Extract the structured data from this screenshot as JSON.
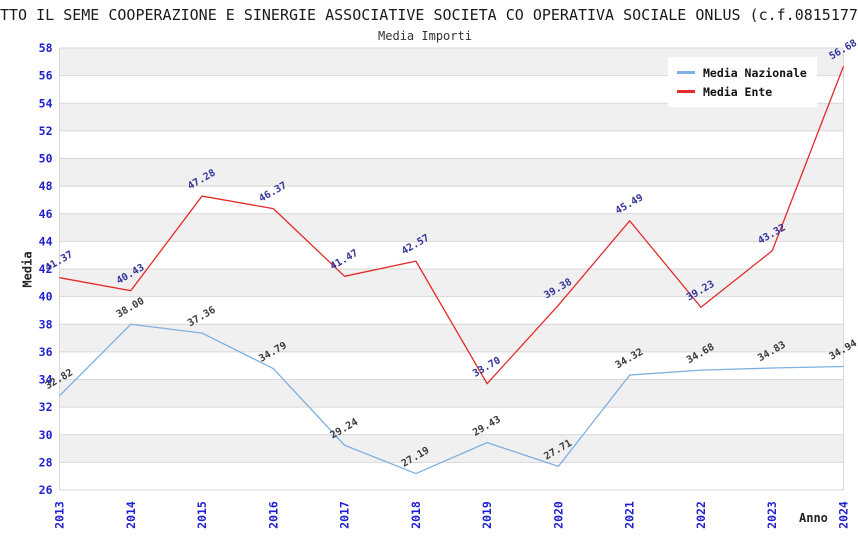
{
  "title": "TTO IL SEME COOPERAZIONE E SINERGIE ASSOCIATIVE SOCIETA CO OPERATIVA SOCIALE ONLUS (c.f.0815177",
  "subtitle": "Media Importi",
  "legend": {
    "items": [
      {
        "label": "Media Nazionale",
        "color": "#7EB0E2"
      },
      {
        "label": "Media Ente",
        "color": "#E42B2B"
      }
    ]
  },
  "chart_data": {
    "type": "line",
    "title": "Media Importi",
    "xlabel": "Anno",
    "ylabel": "Media",
    "x": [
      2013,
      2014,
      2015,
      2016,
      2017,
      2018,
      2019,
      2020,
      2021,
      2022,
      2023,
      2024
    ],
    "series": [
      {
        "name": "Media Nazionale",
        "color": "#7EB0E2",
        "label_color": "#3a3a3a",
        "values": [
          32.82,
          38.0,
          37.36,
          34.79,
          29.24,
          27.19,
          29.43,
          27.71,
          34.32,
          34.68,
          34.83,
          34.94
        ]
      },
      {
        "name": "Media Ente",
        "color": "#E42B2B",
        "label_color": "#333399",
        "values": [
          41.37,
          40.43,
          47.28,
          46.37,
          41.47,
          42.57,
          33.7,
          39.38,
          45.49,
          39.23,
          43.32,
          56.68
        ]
      }
    ],
    "ylim": [
      26,
      58
    ],
    "ytick_step": 2,
    "grid": true,
    "legend_position": "top-right",
    "tick_color": "#1f1fd2",
    "grid_color": "#d8d8d8",
    "band_color": "#f0f0f0",
    "plot_background": "#ffffff"
  }
}
